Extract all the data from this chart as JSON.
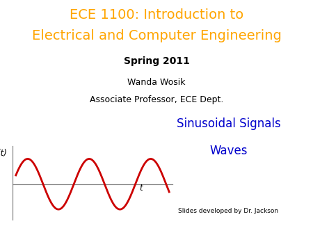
{
  "title_line1": "ECE 1100: Introduction to",
  "title_line2": "Electrical and Computer Engineering",
  "title_color": "#FFA500",
  "subtitle": "Spring 2011",
  "author_line1": "Wanda Wosik",
  "author_line2": "Associate Professor, ECE Dept.",
  "topic_line1": "Sinusoidal Signals",
  "topic_line2": "Waves",
  "topic_color": "#0000CC",
  "footer": "Slides developed by Dr. Jackson",
  "bg_color": "#FFFFFF",
  "wave_color": "#CC0000",
  "axis_color": "#888888",
  "text_color": "#000000",
  "vt_label": "v(t)",
  "t_label": "t",
  "title_fontsize": 14,
  "subtitle_fontsize": 10,
  "author_fontsize": 9,
  "topic_fontsize": 12,
  "footer_fontsize": 6.5
}
